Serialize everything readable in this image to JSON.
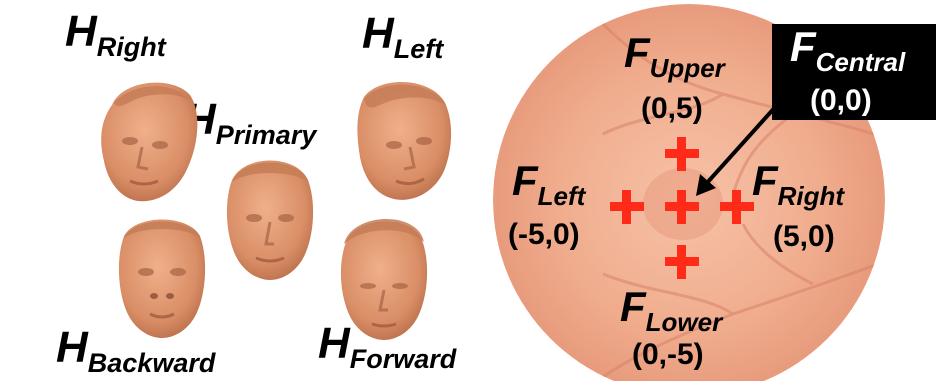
{
  "heads": {
    "right": {
      "main": "H",
      "sub": "Right"
    },
    "left": {
      "main": "H",
      "sub": "Left"
    },
    "primary": {
      "main": "H",
      "sub": "Primary"
    },
    "backward": {
      "main": "H",
      "sub": "Backward"
    },
    "forward": {
      "main": "H",
      "sub": "Forward"
    }
  },
  "fixations": {
    "upper": {
      "main": "F",
      "sub": "Upper",
      "coord": "(0,5)"
    },
    "central": {
      "main": "F",
      "sub": "Central",
      "coord": "(0,0)"
    },
    "left": {
      "main": "F",
      "sub": "Left",
      "coord": "(-5,0)"
    },
    "right": {
      "main": "F",
      "sub": "Right",
      "coord": "(5,0)"
    },
    "lower": {
      "main": "F",
      "sub": "Lower",
      "coord": "(0,-5)"
    }
  },
  "colors": {
    "cross": "#ff2a17",
    "skin": "#d9926a",
    "fundus": "#f2b49a"
  }
}
